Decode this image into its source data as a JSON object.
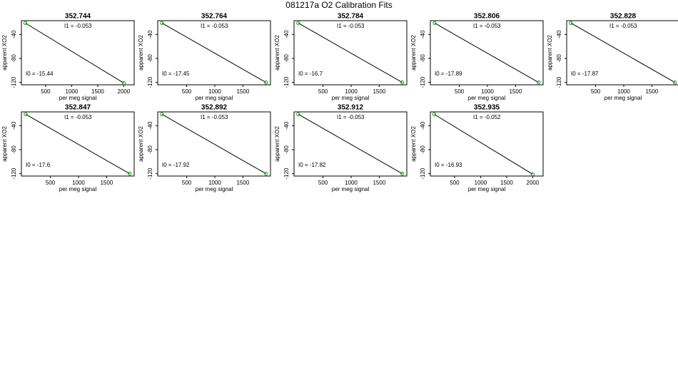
{
  "title": "081217a   O2 Calibration Fits",
  "chart_data": [
    {
      "type": "line",
      "title": "352.744",
      "x_label": "per meg signal",
      "y_label": "apparent XO2",
      "x": [
        110,
        2000
      ],
      "values": [
        -21,
        -121
      ],
      "color": "#000000",
      "marker_color": "#00aa00",
      "xlim": [
        35,
        2200
      ],
      "ylim": [
        -124,
        -17
      ],
      "xticks": [
        500,
        1000,
        1500,
        2000
      ],
      "yticks": [
        -40,
        -80,
        -120
      ],
      "annotations": [
        "I1 =  -0.053",
        "I0 =  -15.44"
      ]
    },
    {
      "type": "line",
      "title": "352.764",
      "x_label": "per meg signal",
      "y_label": "apparent XO2",
      "x": [
        60,
        1910
      ],
      "values": [
        -21,
        -120
      ],
      "color": "#000000",
      "marker_color": "#00aa00",
      "xlim": [
        -15,
        1990
      ],
      "ylim": [
        -124,
        -17
      ],
      "xticks": [
        500,
        1000,
        1500
      ],
      "yticks": [
        -40,
        -80,
        -120
      ],
      "annotations": [
        "I1 =  -0.053",
        "I0 =  -17.45"
      ]
    },
    {
      "type": "line",
      "title": "352.784",
      "x_label": "per meg signal",
      "y_label": "apparent XO2",
      "x": [
        60,
        1910
      ],
      "values": [
        -21,
        -120
      ],
      "color": "#000000",
      "marker_color": "#00aa00",
      "xlim": [
        -15,
        1990
      ],
      "ylim": [
        -124,
        -17
      ],
      "xticks": [
        500,
        1000,
        1500
      ],
      "yticks": [
        -40,
        -80,
        -120
      ],
      "annotations": [
        "I1 =  -0.053",
        "I0 =  -16.7"
      ]
    },
    {
      "type": "line",
      "title": "352.806",
      "x_label": "per meg signal",
      "y_label": "apparent XO2",
      "x": [
        60,
        1910
      ],
      "values": [
        -21,
        -120
      ],
      "color": "#000000",
      "marker_color": "#00aa00",
      "xlim": [
        -15,
        1990
      ],
      "ylim": [
        -124,
        -17
      ],
      "xticks": [
        500,
        1000,
        1500
      ],
      "yticks": [
        -40,
        -80,
        -120
      ],
      "annotations": [
        "I1 =  -0.053",
        "I0 =  -17.89"
      ]
    },
    {
      "type": "line",
      "title": "352.828",
      "x_label": "per meg signal",
      "y_label": "apparent XO2",
      "x": [
        60,
        1910
      ],
      "values": [
        -21,
        -120
      ],
      "color": "#000000",
      "marker_color": "#00aa00",
      "xlim": [
        -15,
        1990
      ],
      "ylim": [
        -124,
        -17
      ],
      "xticks": [
        500,
        1000,
        1500
      ],
      "yticks": [
        -40,
        -80,
        -120
      ],
      "annotations": [
        "I1 =  -0.053",
        "I0 =  -17.87"
      ]
    },
    {
      "type": "line",
      "title": "352.847",
      "x_label": "per meg signal",
      "y_label": "apparent XO2",
      "x": [
        60,
        1910
      ],
      "values": [
        -21,
        -120
      ],
      "color": "#000000",
      "marker_color": "#00aa00",
      "xlim": [
        -15,
        1990
      ],
      "ylim": [
        -124,
        -17
      ],
      "xticks": [
        500,
        1000,
        1500
      ],
      "yticks": [
        -40,
        -80,
        -120
      ],
      "annotations": [
        "I1 =  -0.053",
        "I0 =  -17.6"
      ]
    },
    {
      "type": "line",
      "title": "352.892",
      "x_label": "per meg signal",
      "y_label": "apparent XO2",
      "x": [
        60,
        1910
      ],
      "values": [
        -21,
        -120
      ],
      "color": "#000000",
      "marker_color": "#00aa00",
      "xlim": [
        -15,
        1990
      ],
      "ylim": [
        -124,
        -17
      ],
      "xticks": [
        500,
        1000,
        1500
      ],
      "yticks": [
        -40,
        -80,
        -120
      ],
      "annotations": [
        "I1 =  -0.053",
        "I0 =  -17.92"
      ]
    },
    {
      "type": "line",
      "title": "352.912",
      "x_label": "per meg signal",
      "y_label": "apparent XO2",
      "x": [
        60,
        1910
      ],
      "values": [
        -21,
        -120
      ],
      "color": "#000000",
      "marker_color": "#00aa00",
      "xlim": [
        -15,
        1990
      ],
      "ylim": [
        -124,
        -17
      ],
      "xticks": [
        500,
        1000,
        1500
      ],
      "yticks": [
        -40,
        -80,
        -120
      ],
      "annotations": [
        "I1 =  -0.053",
        "I0 =  -17.82"
      ]
    },
    {
      "type": "line",
      "title": "352.935",
      "x_label": "per meg signal",
      "y_label": "apparent XO2",
      "x": [
        110,
        2000
      ],
      "values": [
        -21,
        -121
      ],
      "color": "#000000",
      "marker_color": "#00aa00",
      "xlim": [
        35,
        2200
      ],
      "ylim": [
        -124,
        -17
      ],
      "xticks": [
        500,
        1000,
        1500,
        2000
      ],
      "yticks": [
        -40,
        -80,
        -120
      ],
      "annotations": [
        "I1 =  -0.052",
        "I0 =  -16.93"
      ]
    }
  ]
}
